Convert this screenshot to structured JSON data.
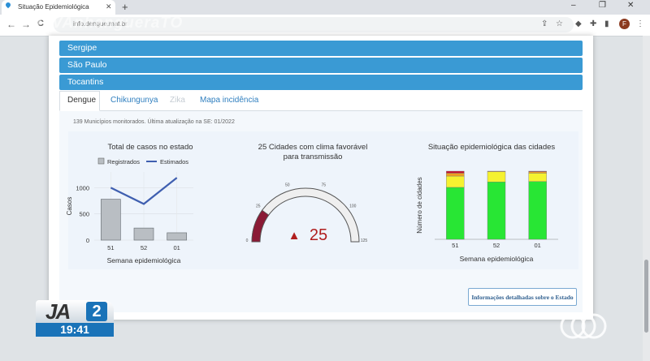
{
  "browser": {
    "tab_title": "Situação Epidemiológica",
    "new_tab": "+",
    "url": "info.dengue.mat.br",
    "watermark": "#TVAnhangueraTO",
    "avatar_letter": "F",
    "win_minimize": "–",
    "win_restore": "❐",
    "win_close": "✕",
    "nav_back": "←",
    "nav_forward": "→",
    "nav_reload": "C"
  },
  "accordion": [
    "Sergipe",
    "São Paulo",
    "Tocantins"
  ],
  "tabs": [
    {
      "label": "Dengue",
      "state": "active"
    },
    {
      "label": "Chikungunya",
      "state": "normal"
    },
    {
      "label": "Zika",
      "state": "disabled"
    },
    {
      "label": "Mapa incidência",
      "state": "normal"
    }
  ],
  "info_line": "139 Municípios monitorados. Última atualização na SE: 01/2022",
  "chart_data": [
    {
      "type": "bar",
      "title": "Total de casos no estado",
      "xlabel": "Semana epidemiológica",
      "ylabel": "Casos",
      "categories": [
        "51",
        "52",
        "01"
      ],
      "series": [
        {
          "name": "Registrados",
          "type": "bar",
          "values": [
            780,
            230,
            140
          ],
          "color": "#b9bec3"
        },
        {
          "name": "Estimados",
          "type": "line",
          "values": [
            1000,
            690,
            1190
          ],
          "color": "#3f5fb0"
        }
      ],
      "yticks": [
        0,
        500,
        1000
      ],
      "ylim": [
        0,
        1300
      ],
      "legend": "top"
    },
    {
      "type": "gauge",
      "title_line1": "25 Cidades com clima favorável",
      "title_line2": "para transmissão",
      "value": 25,
      "value_label": "25",
      "range": [
        0,
        125
      ],
      "ticks": [
        "0",
        "25",
        "50",
        "75",
        "100",
        "125"
      ],
      "indicator": "▲",
      "value_color": "#b01e1e",
      "fill_color": "#8a1a35"
    },
    {
      "type": "bar",
      "stacked": true,
      "title": "Situação epidemiológica das cidades",
      "xlabel": "Semana epidemiológica",
      "ylabel": "Número de cidades",
      "categories": [
        "51",
        "52",
        "01"
      ],
      "series": [
        {
          "values": [
            106,
            117,
            118
          ],
          "color": "#28e634"
        },
        {
          "values": [
            23,
            21,
            17
          ],
          "color": "#f5f230"
        },
        {
          "values": [
            6,
            1,
            3
          ],
          "color": "#f0a020"
        },
        {
          "values": [
            4,
            0,
            1
          ],
          "color": "#c8102e"
        }
      ],
      "ymax": 139
    }
  ],
  "detail_button": "Informações detalhadas sobre o Estado",
  "overlay": {
    "program": "JA",
    "edition": "2",
    "time": "19:41"
  }
}
